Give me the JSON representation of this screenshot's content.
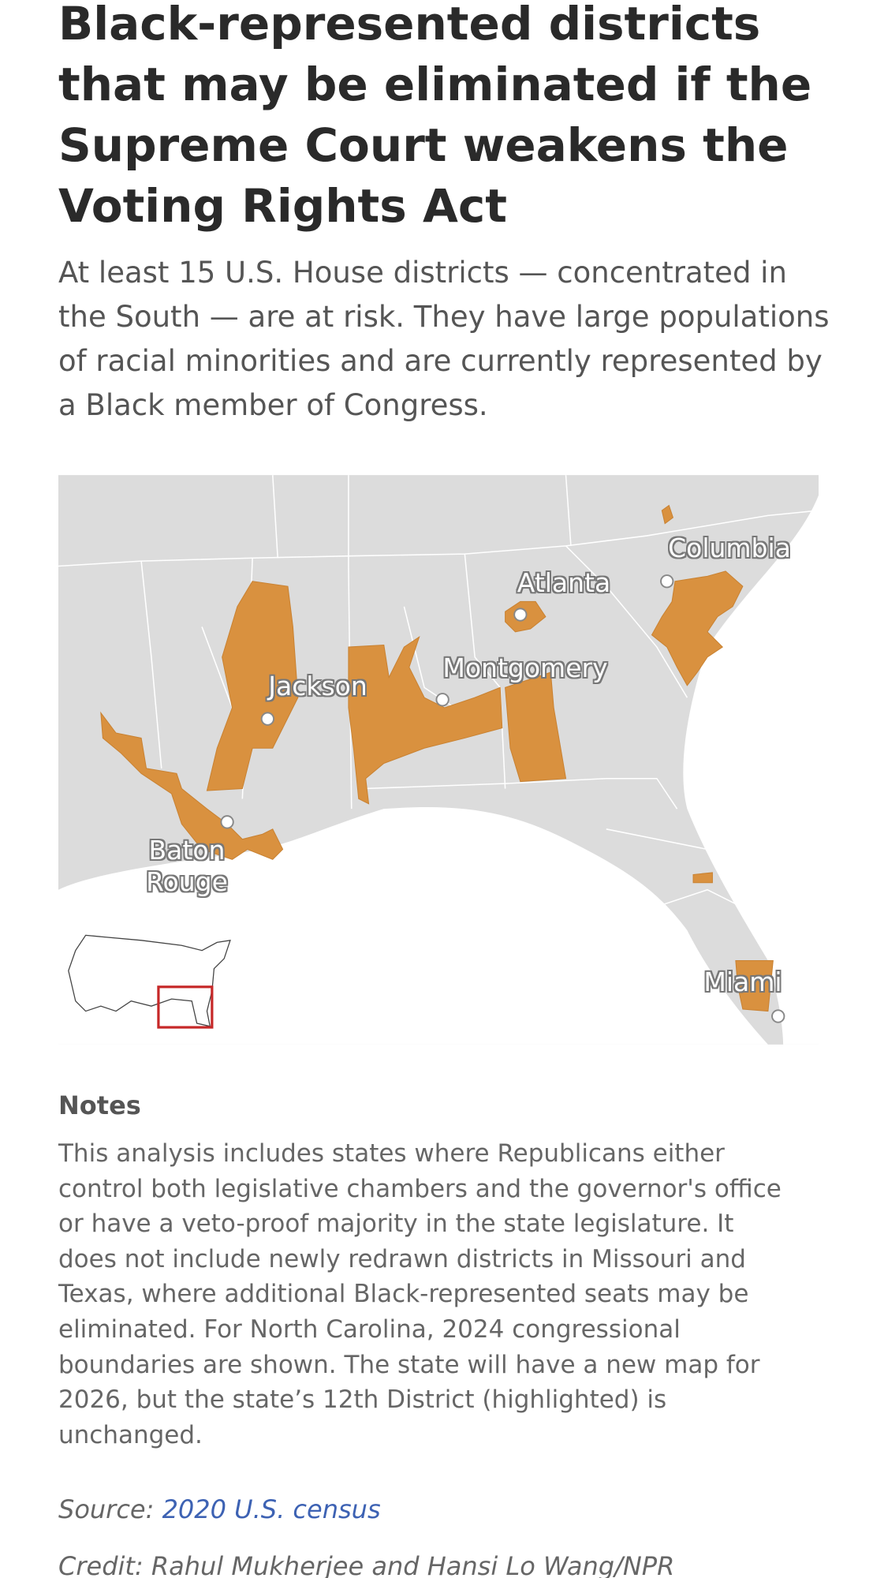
{
  "title": "Black-represented districts that may be eliminated if the Supreme Court weakens the Voting Rights Act",
  "subtitle": "At least 15 U.S. House districts — concentrated in the South — are at risk. They have large populations of racial minorities and are currently represented by a Black member of Congress.",
  "map": {
    "labels": [
      "Columbia",
      "Atlanta",
      "Montgomery",
      "Jackson",
      "Baton Rouge",
      "Miami"
    ]
  },
  "notes": {
    "heading": "Notes",
    "text": "This analysis includes states where Republicans either control both legislative chambers and the governor's office or have a veto-proof majority in the state legislature. It does not include newly redrawn districts in Missouri and Texas, where additional Black-represented seats may be eliminated. For North Carolina, 2024 congressional boundaries are shown. The state will have a new map for 2026, but the state’s 12th District (highlighted) is unchanged."
  },
  "source": {
    "label": "Source:",
    "link": "2020 U.S. census"
  },
  "credit": "Credit: Rahul Mukherjee and Hansi Lo Wang/NPR"
}
